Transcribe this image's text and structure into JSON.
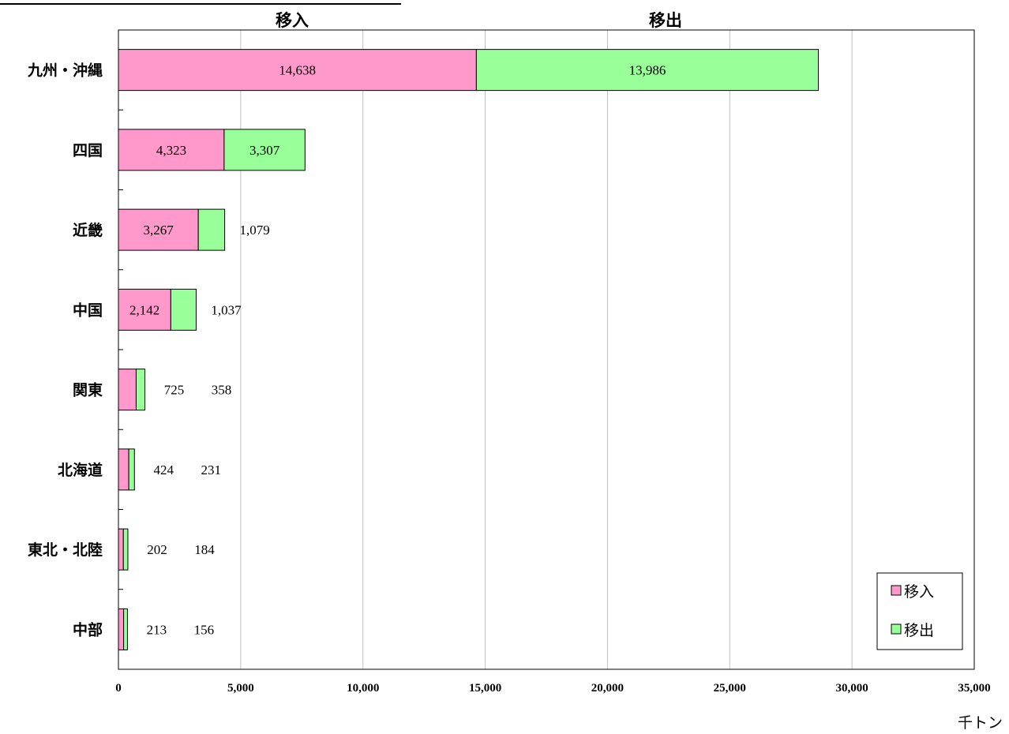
{
  "chart_data": {
    "type": "bar",
    "orientation": "horizontal",
    "stacked": true,
    "categories": [
      "九州・沖縄",
      "四国",
      "近畿",
      "中国",
      "関東",
      "北海道",
      "東北・北陸",
      "中部"
    ],
    "series": [
      {
        "name": "移入",
        "color": "#ff99cc",
        "values": [
          14638,
          4323,
          3267,
          2142,
          725,
          424,
          202,
          213
        ],
        "labels": [
          "14,638",
          "4,323",
          "3,267",
          "2,142",
          "725",
          "424",
          "202",
          "213"
        ]
      },
      {
        "name": "移出",
        "color": "#99ff99",
        "values": [
          13986,
          3307,
          1079,
          1037,
          358,
          231,
          184,
          156
        ],
        "labels": [
          "13,986",
          "3,307",
          "1,079",
          "1,037",
          "358",
          "231",
          "184",
          "156"
        ]
      }
    ],
    "xlim": [
      0,
      35000
    ],
    "ticks": [
      0,
      5000,
      10000,
      15000,
      20000,
      25000,
      30000,
      35000
    ],
    "tick_labels": [
      "0",
      "5,000",
      "10,000",
      "15,000",
      "20,000",
      "25,000",
      "30,000",
      "35,000"
    ],
    "column_headers": [
      "移入",
      "移出"
    ],
    "xlabel": "千トン",
    "grid": true,
    "legend_position": "bottom-right"
  }
}
